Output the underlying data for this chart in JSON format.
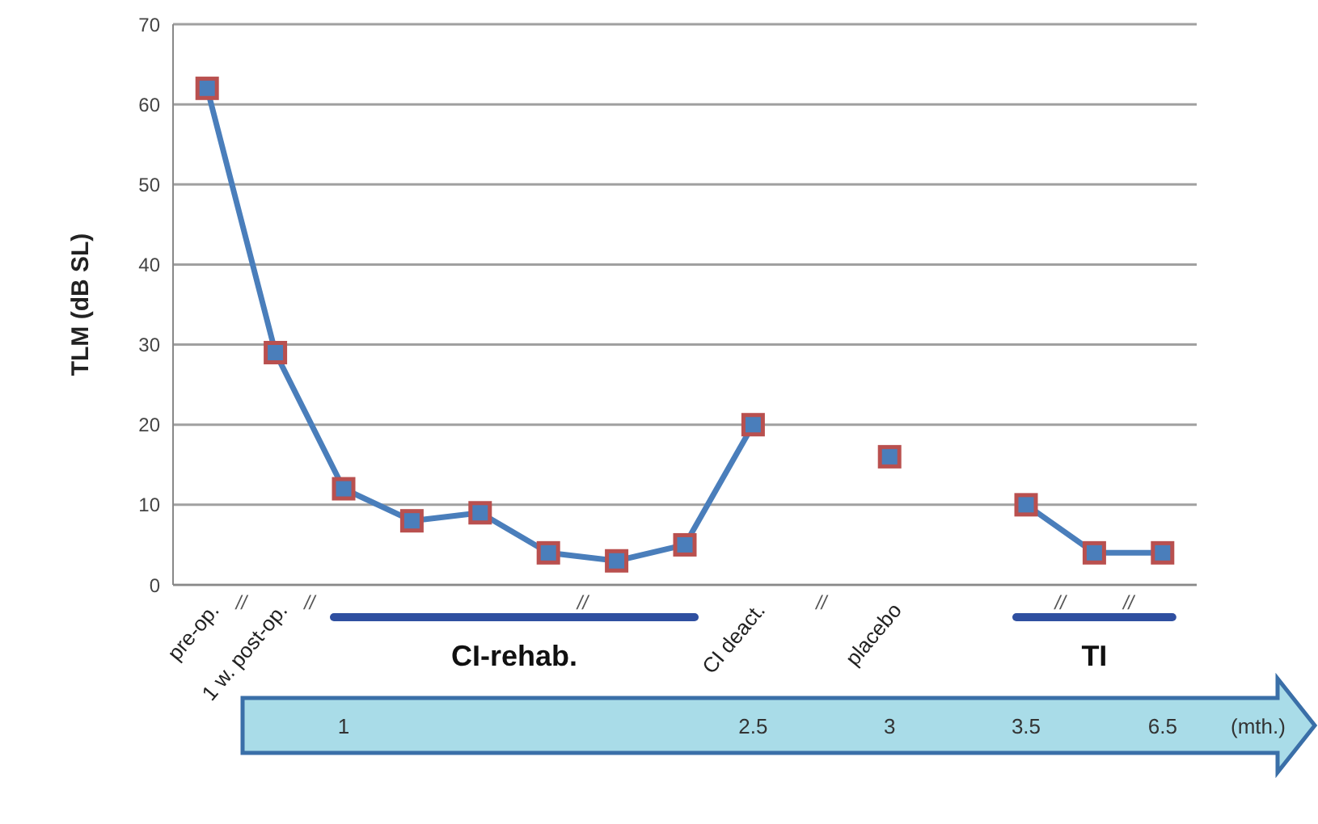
{
  "chart_data": {
    "type": "line",
    "ylabel": "TLM (dB SL)",
    "categories": [
      "pre-op.",
      "1 w. post-op.",
      null,
      null,
      null,
      null,
      null,
      null,
      "CI deact.",
      null,
      "placebo",
      null,
      null,
      null,
      null
    ],
    "series": [
      {
        "color": "#4a7ebb",
        "values": [
          62,
          29,
          12,
          8,
          9,
          4,
          3,
          5,
          20,
          null,
          16,
          null,
          10,
          4,
          4
        ]
      }
    ],
    "ylim": [
      0,
      70
    ],
    "yticks": [
      0,
      10,
      20,
      30,
      40,
      50,
      60,
      70
    ],
    "grid": "y",
    "marker": "square",
    "line_style": "solid",
    "annotations": [
      "CI-rehab.",
      "TI",
      "//",
      "//",
      "//",
      "//",
      "//",
      "//",
      "1",
      "2.5",
      "3",
      "3.5",
      "6.5",
      "(mth.)"
    ]
  }
}
